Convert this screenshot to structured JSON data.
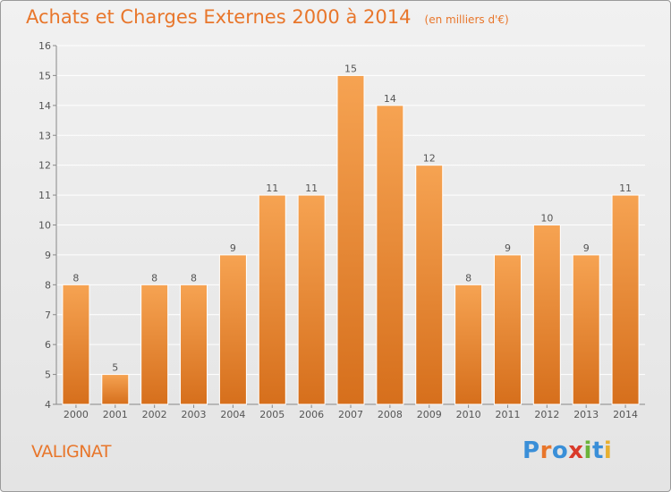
{
  "title": "Achats et Charges Externes 2000 à 2014",
  "unit": "(en milliers d'€)",
  "place": "VALIGNAT",
  "logo": {
    "text": "Proxiti",
    "letter_colors": [
      "#3a8fd8",
      "#e8762b",
      "#3a8fd8",
      "#d93a2a",
      "#6bb33a",
      "#3a8fd8",
      "#e8b030"
    ]
  },
  "colors": {
    "bar_top": "#f6a352",
    "bar_bottom": "#d66f1c",
    "label": "#555555",
    "grid": "#ffffff"
  },
  "chart_data": {
    "type": "bar",
    "title": "Achats et Charges Externes 2000 à 2014",
    "xlabel": "",
    "ylabel": "",
    "categories": [
      "2000",
      "2001",
      "2002",
      "2003",
      "2004",
      "2005",
      "2006",
      "2007",
      "2008",
      "2009",
      "2010",
      "2011",
      "2012",
      "2013",
      "2014"
    ],
    "values": [
      8,
      5,
      8,
      8,
      9,
      11,
      11,
      15,
      14,
      12,
      8,
      9,
      10,
      9,
      11
    ],
    "ylim": [
      4,
      16
    ],
    "yticks": [
      4,
      5,
      6,
      7,
      8,
      9,
      10,
      11,
      12,
      13,
      14,
      15,
      16
    ],
    "grid": true,
    "data_labels": true
  }
}
